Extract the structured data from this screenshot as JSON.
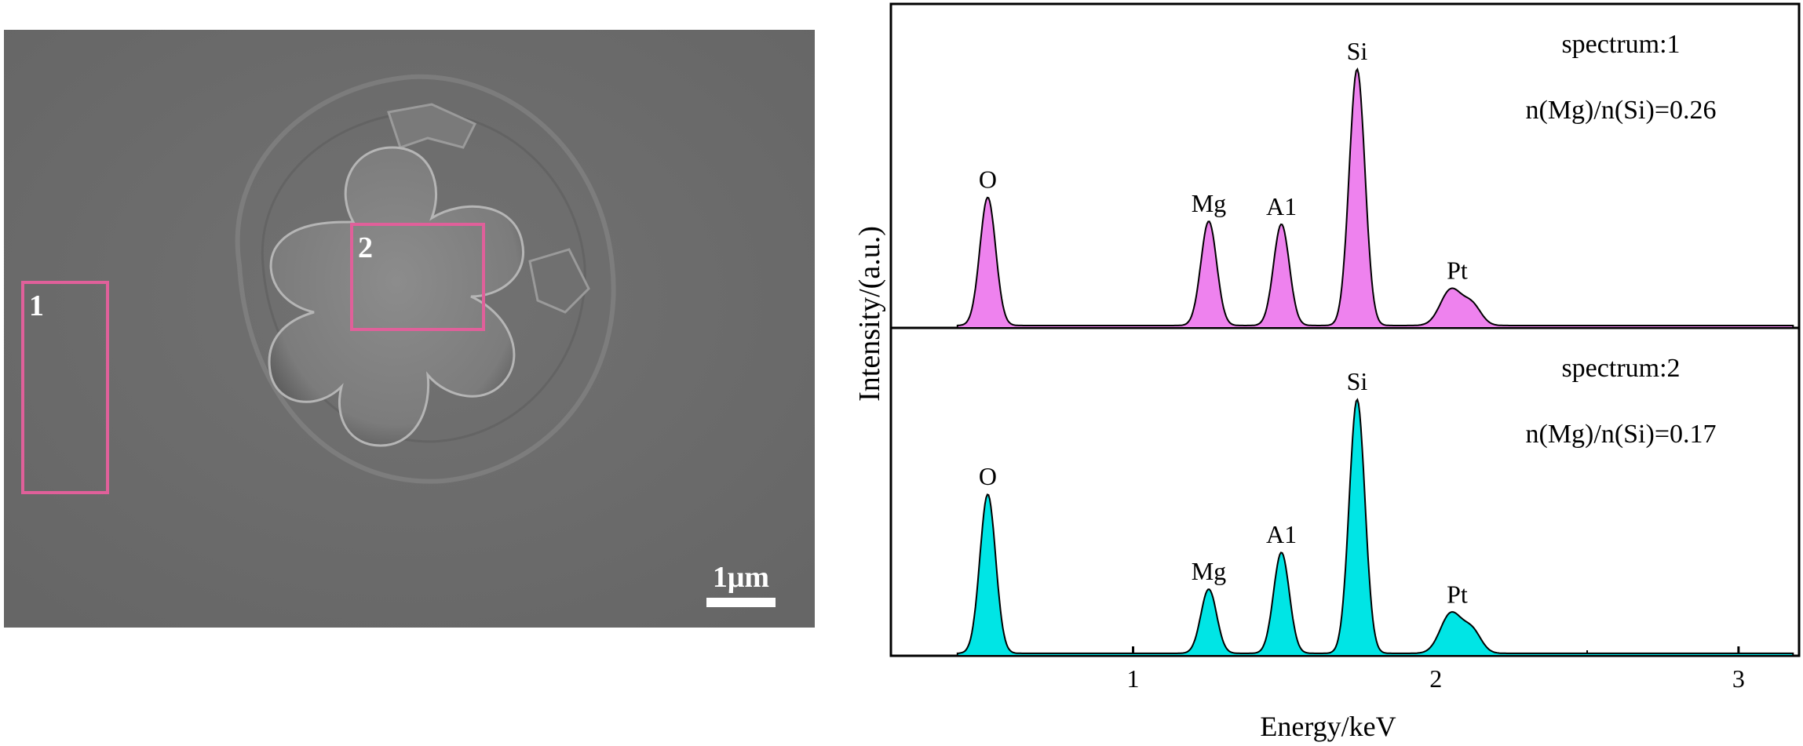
{
  "sem_image": {
    "regions": [
      {
        "label": "1"
      },
      {
        "label": "2"
      }
    ],
    "scale_bar_label": "1μm",
    "region_color": "#e0609a",
    "background_color": "#6b6b6b"
  },
  "chart_data": {
    "type": "line",
    "xlabel": "Energy/keV",
    "ylabel": "Intensity/(a.u.)",
    "xlim": [
      0.2,
      3.2
    ],
    "x_ticks": [
      "1",
      "2",
      "3"
    ],
    "grid": false,
    "series": [
      {
        "name": "spectrum:1",
        "annotation": "n(Mg)/n(Si)=0.26",
        "color": "#ee82ee",
        "peaks": [
          {
            "element": "O",
            "energy": 0.52,
            "intensity": 0.43
          },
          {
            "element": "Mg",
            "energy": 1.25,
            "intensity": 0.35
          },
          {
            "element": "Al",
            "energy": 1.49,
            "intensity": 0.34
          },
          {
            "element": "Si",
            "energy": 1.74,
            "intensity": 0.86
          },
          {
            "element": "Pt",
            "energy": 2.05,
            "intensity": 0.12
          }
        ]
      },
      {
        "name": "spectrum:2",
        "annotation": "n(Mg)/n(Si)=0.17",
        "color": "#00e5e5",
        "peaks": [
          {
            "element": "O",
            "energy": 0.52,
            "intensity": 0.52
          },
          {
            "element": "Mg",
            "energy": 1.25,
            "intensity": 0.21
          },
          {
            "element": "Al",
            "energy": 1.49,
            "intensity": 0.33
          },
          {
            "element": "Si",
            "energy": 1.74,
            "intensity": 0.83
          },
          {
            "element": "Pt",
            "energy": 2.05,
            "intensity": 0.13
          }
        ]
      }
    ],
    "peak_labels": {
      "O": "O",
      "Mg": "Mg",
      "Al": "A1",
      "Si": "Si",
      "Pt": "Pt"
    }
  }
}
